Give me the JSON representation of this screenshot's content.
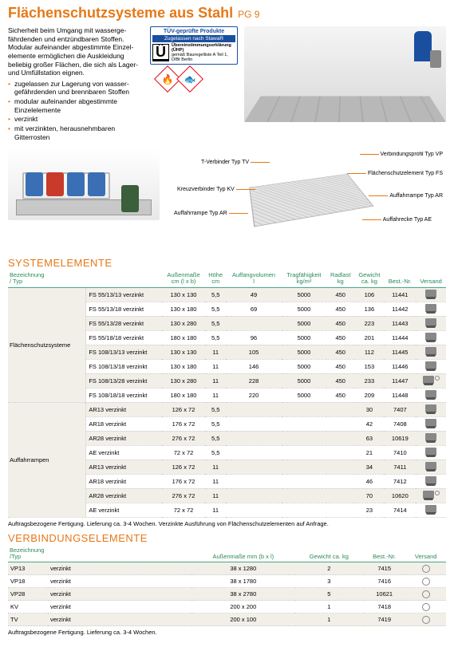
{
  "title": "Flächenschutzsysteme aus Stahl",
  "title_code": "PG 9",
  "intro": {
    "para": "Sicherheit beim Umgang mit wasserge­fährdenden und entzündbaren Stoffen. Modular aufeinander abgestimmte Einzel­elemente ermöglichen die Auskleidung beliebig großer Flächen, die sich als Lager- und Umfüllstation eignen.",
    "bullets": [
      "zugelassen zur Lagerung von wasser­gefährdenden und brennbaren Stoffen",
      "modular aufeinander abgestimmte Einzelelemente",
      "verzinkt",
      "mit verzinkten, herausnehm­baren Gitterrosten"
    ]
  },
  "badge": {
    "header": "TÜV-geprüfte Produkte",
    "sub": "Zugelassen nach StawaR",
    "line1": "Übereinstimmungs­erklärung (ÜHP)",
    "line2": "gemäß Bauregelliste A Teil 1, DIBt Berlin"
  },
  "diagram_labels": {
    "tv": "T-Verbinder Typ TV",
    "vp": "Verbindungs­profil Typ VP",
    "fs": "Flächenschutz­element Typ FS",
    "kv": "Kreuzverbinder Typ KV",
    "ar": "Auffahrrampe Typ AR",
    "ae": "Auffahrecke Typ AE"
  },
  "section1": "SYSTEMELEMENTE",
  "section2": "VERBINDUNGSELEMENTE",
  "t1": {
    "cols": [
      "Bezeichnung / Typ",
      "",
      "Außenmaße cm (l x b)",
      "Höhe cm",
      "Auffang­volumen l",
      "Tragfähig­keit kg/m²",
      "Radlast kg",
      "Gewicht ca. kg",
      "Best.-Nr.",
      "Versand"
    ],
    "group1": "Flächenschutz­systeme",
    "group2": "Auffahrrampen",
    "rows1": [
      [
        "FS 55/13/13 verzinkt",
        "130 x 130",
        "5,5",
        "49",
        "5000",
        "450",
        "106",
        "11441",
        "t"
      ],
      [
        "FS 55/13/18 verzinkt",
        "130 x 180",
        "5,5",
        "69",
        "5000",
        "450",
        "136",
        "11442",
        "t"
      ],
      [
        "FS 55/13/28 verzinkt",
        "130 x 280",
        "5,5",
        "",
        "5000",
        "450",
        "223",
        "11443",
        "t"
      ],
      [
        "FS 55/18/18 verzinkt",
        "180 x 180",
        "5,5",
        "96",
        "5000",
        "450",
        "201",
        "11444",
        "t"
      ],
      [
        "FS 108/13/13 verzinkt",
        "130 x 130",
        "11",
        "105",
        "5000",
        "450",
        "112",
        "11445",
        "t"
      ],
      [
        "FS 108/13/18 verzinkt",
        "130 x 180",
        "11",
        "146",
        "5000",
        "450",
        "153",
        "11446",
        "t"
      ],
      [
        "FS 108/13/28 verzinkt",
        "130 x 280",
        "11",
        "228",
        "5000",
        "450",
        "233",
        "11447",
        "tp"
      ],
      [
        "FS 108/18/18 verzinkt",
        "180 x 180",
        "11",
        "220",
        "5000",
        "450",
        "209",
        "11448",
        "t"
      ]
    ],
    "rows2": [
      [
        "AR13 verzinkt",
        "126 x 72",
        "5,5",
        "",
        "",
        "",
        "30",
        "7407",
        "t"
      ],
      [
        "AR18 verzinkt",
        "176 x 72",
        "5,5",
        "",
        "",
        "",
        "42",
        "7408",
        "t"
      ],
      [
        "AR28 verzinkt",
        "276 x 72",
        "5,5",
        "",
        "",
        "",
        "63",
        "10619",
        "t"
      ],
      [
        "AE verzinkt",
        "72 x 72",
        "5,5",
        "",
        "",
        "",
        "21",
        "7410",
        "t"
      ],
      [
        "AR13 verzinkt",
        "126 x 72",
        "11",
        "",
        "",
        "",
        "34",
        "7411",
        "t"
      ],
      [
        "AR18 verzinkt",
        "176 x 72",
        "11",
        "",
        "",
        "",
        "46",
        "7412",
        "t"
      ],
      [
        "AR28 verzinkt",
        "276 x 72",
        "11",
        "",
        "",
        "",
        "70",
        "10620",
        "tp"
      ],
      [
        "AE verzinkt",
        "72 x 72",
        "11",
        "",
        "",
        "",
        "23",
        "7414",
        "t"
      ]
    ]
  },
  "foot1": "Auftragsbezogene Fertigung. Lieferung ca. 3-4 Wochen. Verzinkte Ausführung von Flächenschutzelementen auf Anfrage.",
  "t2": {
    "cols": [
      "Bezeichnung /Typ",
      "",
      "Außenmaße mm (b x l)",
      "Gewicht ca. kg",
      "Best.-Nr.",
      "Versand"
    ],
    "rows": [
      [
        "VP13",
        "verzinkt",
        "38 x 1280",
        "2",
        "7415",
        "p"
      ],
      [
        "VP18",
        "verzinkt",
        "38 x 1780",
        "3",
        "7416",
        "p"
      ],
      [
        "VP28",
        "verzinkt",
        "38 x 2780",
        "5",
        "10621",
        "p"
      ],
      [
        "KV",
        "verzinkt",
        "200 x 200",
        "1",
        "7418",
        "p"
      ],
      [
        "TV",
        "verzinkt",
        "200 x 100",
        "1",
        "7419",
        "p"
      ]
    ]
  },
  "foot2": "Auftragsbezogene Fertigung. Lieferung ca. 3-4 Wochen."
}
